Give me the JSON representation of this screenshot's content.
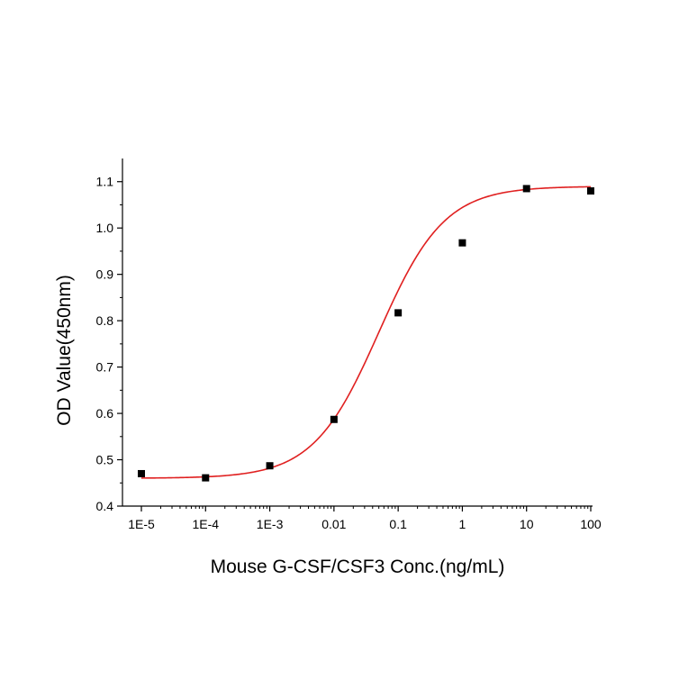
{
  "chart_data": {
    "type": "scatter",
    "title": "",
    "xlabel": "Mouse G-CSF/CSF3 Conc.(ng/mL)",
    "ylabel": "OD Value(450nm)",
    "xscale": "log",
    "xlim": [
      1e-05,
      100
    ],
    "ylim": [
      0.4,
      1.15
    ],
    "xticks": [
      {
        "value": 1e-05,
        "label": "1E-5"
      },
      {
        "value": 0.0001,
        "label": "1E-4"
      },
      {
        "value": 0.001,
        "label": "1E-3"
      },
      {
        "value": 0.01,
        "label": "0.01"
      },
      {
        "value": 0.1,
        "label": "0.1"
      },
      {
        "value": 1,
        "label": "1"
      },
      {
        "value": 10,
        "label": "10"
      },
      {
        "value": 100,
        "label": "100"
      }
    ],
    "yticks": [
      {
        "value": 0.4,
        "label": "0.4"
      },
      {
        "value": 0.5,
        "label": "0.5"
      },
      {
        "value": 0.6,
        "label": "0.6"
      },
      {
        "value": 0.7,
        "label": "0.7"
      },
      {
        "value": 0.8,
        "label": "0.8"
      },
      {
        "value": 0.9,
        "label": "0.9"
      },
      {
        "value": 1.0,
        "label": "1.0"
      },
      {
        "value": 1.1,
        "label": "1.1"
      }
    ],
    "grid": false,
    "legend": "none",
    "series": [
      {
        "kind": "points",
        "marker": "square",
        "color": "#000000",
        "x": [
          1e-05,
          0.0001,
          0.001,
          0.01,
          0.1,
          1,
          10,
          100
        ],
        "y": [
          0.47,
          0.461,
          0.487,
          0.587,
          0.817,
          0.968,
          1.085,
          1.08
        ]
      },
      {
        "kind": "fit-curve",
        "model": "4PL",
        "color": "#e02020",
        "params": {
          "bottom": 0.46,
          "top": 1.09,
          "ec50": 0.05,
          "hill": 0.85
        }
      }
    ]
  }
}
